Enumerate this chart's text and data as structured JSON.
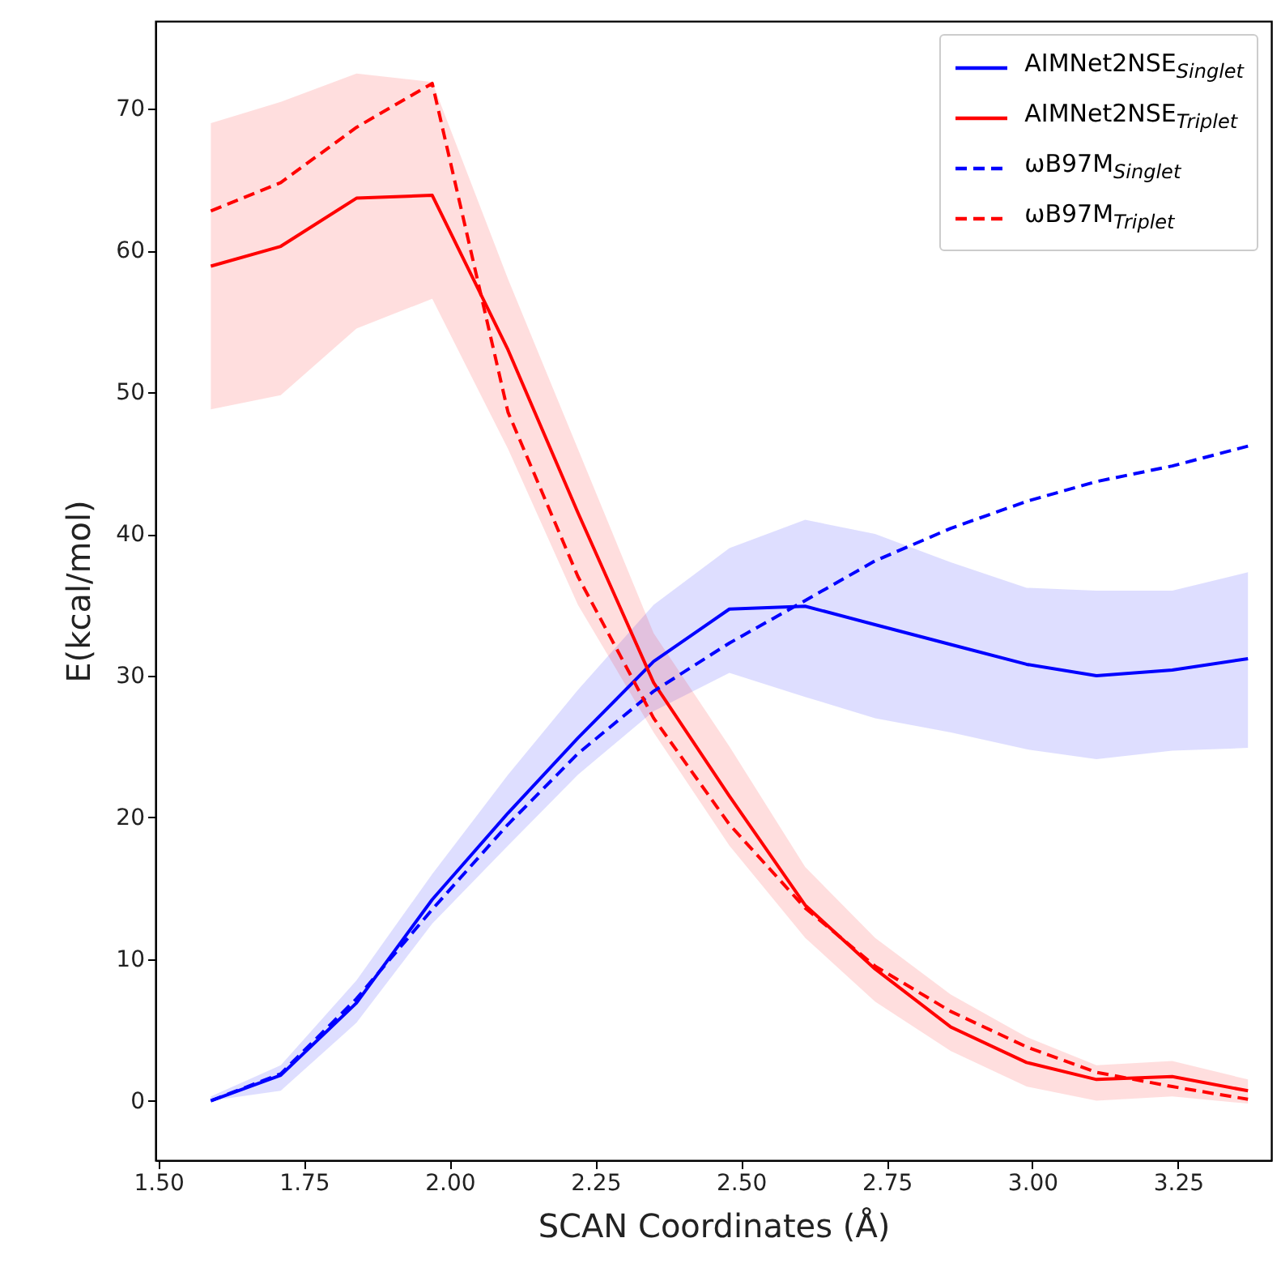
{
  "chart_data": {
    "type": "line",
    "xlabel": "SCAN Coordinates (Å)",
    "ylabel": "E(kcal/mol)",
    "x": [
      1.59,
      1.71,
      1.84,
      1.97,
      2.1,
      2.22,
      2.35,
      2.48,
      2.61,
      2.73,
      2.86,
      2.99,
      3.11,
      3.24,
      3.37
    ],
    "xlim": [
      1.495,
      3.41
    ],
    "ylim": [
      -4.2,
      76.2
    ],
    "xticks": [
      {
        "value": 1.5,
        "label": "1.50"
      },
      {
        "value": 1.75,
        "label": "1.75"
      },
      {
        "value": 2.0,
        "label": "2.00"
      },
      {
        "value": 2.25,
        "label": "2.25"
      },
      {
        "value": 2.5,
        "label": "2.50"
      },
      {
        "value": 2.75,
        "label": "2.75"
      },
      {
        "value": 3.0,
        "label": "3.00"
      },
      {
        "value": 3.25,
        "label": "3.25"
      }
    ],
    "yticks": [
      0,
      10,
      20,
      30,
      40,
      50,
      60,
      70
    ],
    "grid": false,
    "legend": "top right",
    "marker": "none",
    "series": [
      {
        "name": "AIMNet2NSE$_{Singlet}$",
        "color": "#0000ff",
        "line_style": "solid",
        "values": [
          0,
          1.8,
          6.9,
          14.2,
          20.3,
          25.6,
          31.0,
          34.7,
          34.9,
          33.6,
          32.2,
          30.8,
          30.0,
          30.4,
          31.2
        ],
        "lower": [
          0,
          0.7,
          5.5,
          12.5,
          18,
          23,
          27.5,
          30.2,
          28.5,
          27,
          26,
          24.8,
          24.1,
          24.7,
          24.9
        ],
        "upper": [
          0.3,
          2.5,
          8.5,
          16,
          23,
          29,
          35,
          39,
          41,
          40,
          38,
          36.2,
          36,
          36,
          37.3
        ]
      },
      {
        "name": "AIMNet2NSE$_{Triplet}$",
        "color": "#ff0000",
        "line_style": "solid",
        "values": [
          58.9,
          60.3,
          63.7,
          63.9,
          53,
          41.5,
          29.5,
          21.5,
          13.8,
          9.3,
          5.2,
          2.7,
          1.5,
          1.7,
          0.7
        ],
        "lower": [
          48.8,
          49.8,
          54.5,
          56.6,
          46,
          35,
          26,
          18,
          11.5,
          7,
          3.5,
          1,
          0,
          0.3,
          -0.2
        ],
        "upper": [
          69,
          70.5,
          72.5,
          71.9,
          58,
          46,
          33,
          25,
          16.5,
          11.5,
          7.5,
          4.5,
          2.5,
          2.8,
          1.5
        ]
      },
      {
        "name": "ωB97M$_{Singlet}$",
        "color": "#0000ff",
        "line_style": "dashed",
        "values": [
          0,
          1.9,
          7.2,
          13.5,
          19.5,
          24.5,
          28.9,
          32.3,
          35.3,
          38.1,
          40.4,
          42.3,
          43.7,
          44.8,
          46.2
        ]
      },
      {
        "name": "ωB97M$_{Triplet}$",
        "color": "#ff0000",
        "line_style": "dashed",
        "values": [
          62.8,
          64.8,
          68.7,
          71.8,
          48.6,
          37,
          27,
          19.5,
          13.6,
          9.5,
          6.3,
          3.8,
          2.0,
          1.0,
          0.1
        ]
      }
    ]
  }
}
